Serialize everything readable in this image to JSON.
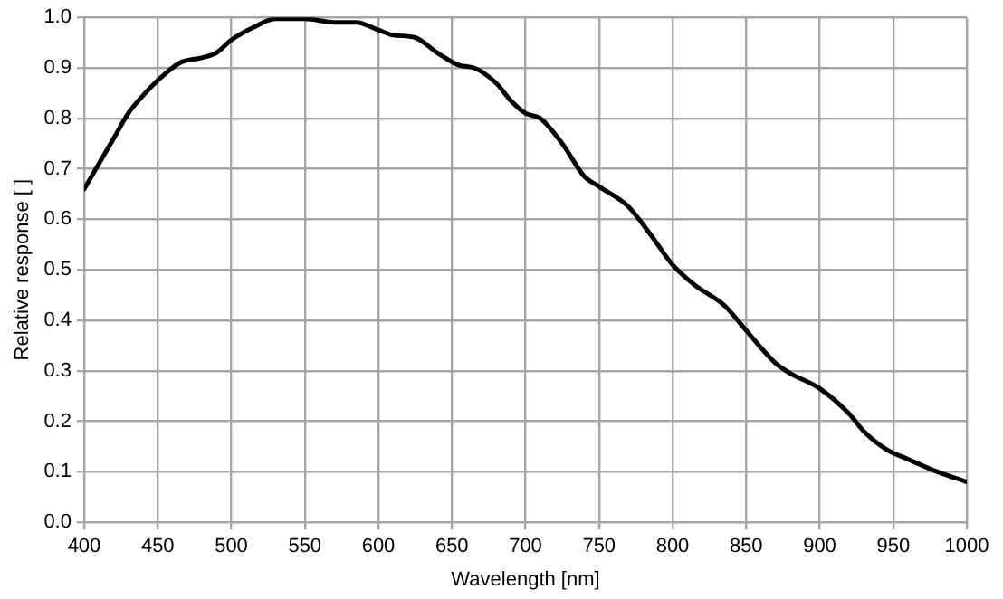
{
  "chart_data": {
    "type": "line",
    "xlabel": "Wavelength [nm]",
    "ylabel": "Relative response [ ]",
    "xlim": [
      400,
      1000
    ],
    "xticks": [
      400,
      450,
      500,
      550,
      600,
      650,
      700,
      750,
      800,
      850,
      900,
      950,
      1000
    ],
    "ylim": [
      0,
      1
    ],
    "yticks": [
      {
        "value": 0,
        "label": "0.0"
      },
      {
        "value": 0.1,
        "label": "0.1"
      },
      {
        "value": 0.2,
        "label": "0.2"
      },
      {
        "value": 0.3,
        "label": "0.3"
      },
      {
        "value": 0.4,
        "label": "0.4"
      },
      {
        "value": 0.5,
        "label": "0.5"
      },
      {
        "value": 0.6,
        "label": "0.6"
      },
      {
        "value": 0.7,
        "label": "0.7"
      },
      {
        "value": 0.8,
        "label": "0.8"
      },
      {
        "value": 0.9,
        "label": "0.9"
      },
      {
        "value": 1,
        "label": "1.0"
      }
    ],
    "grid": true,
    "legend": false,
    "marker": "none",
    "line_style": "solid",
    "x": [
      400,
      410,
      420,
      430,
      440,
      450,
      465,
      480,
      490,
      500,
      515,
      530,
      550,
      570,
      585,
      600,
      610,
      625,
      640,
      655,
      665,
      680,
      690,
      700,
      710,
      725,
      740,
      750,
      770,
      785,
      800,
      815,
      835,
      850,
      870,
      880,
      900,
      920,
      930,
      945,
      960,
      980,
      1000
    ],
    "series": [
      {
        "color": "#000000",
        "values": [
          0.66,
          0.71,
          0.76,
          0.81,
          0.845,
          0.875,
          0.91,
          0.92,
          0.93,
          0.955,
          0.98,
          0.997,
          0.997,
          0.99,
          0.99,
          0.975,
          0.965,
          0.96,
          0.93,
          0.905,
          0.9,
          0.87,
          0.835,
          0.81,
          0.8,
          0.75,
          0.685,
          0.665,
          0.625,
          0.57,
          0.51,
          0.47,
          0.43,
          0.38,
          0.315,
          0.295,
          0.265,
          0.215,
          0.18,
          0.145,
          0.125,
          0.1,
          0.08
        ]
      }
    ]
  }
}
